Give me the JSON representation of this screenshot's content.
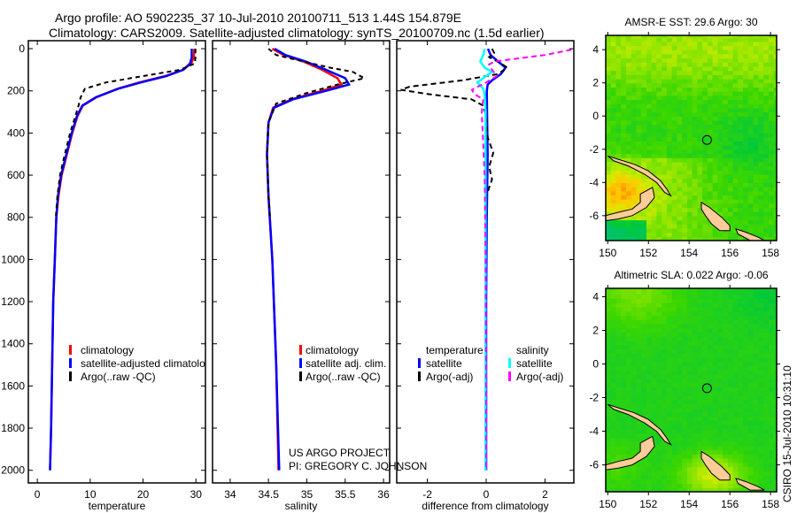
{
  "header": {
    "title_line1": "Argo profile: AO 5902235_37 10-Jul-2010 20100711_513 1.44S 154.879E",
    "title_line2": "Climatology: CARS2009. Satellite-adjusted climatology: synTS_20100709.nc (1.5d earlier)"
  },
  "credit": {
    "line1": "US ARGO PROJECT",
    "line2": "PI: GREGORY C. JOHNSON",
    "timestamp": "CSIRO 15-Jul-2010 10:31:10"
  },
  "colors": {
    "climatology": "#ff0000",
    "satellite": "#0000ff",
    "argo": "#000000",
    "sal_satellite": "#00ffff",
    "sal_argo": "#ff00ff",
    "land": "#ffcc99"
  },
  "chart_data": [
    {
      "type": "line",
      "title": "",
      "xlabel": "temperature",
      "ylabel": "",
      "xlim": [
        -1.7,
        31.8
      ],
      "ylim": [
        2060,
        -38
      ],
      "xticks": [
        "0",
        "10",
        "20",
        "30"
      ],
      "xtick_values": [
        0,
        10,
        20,
        30
      ],
      "yticks": [
        "0",
        "200",
        "400",
        "600",
        "800",
        "1000",
        "1200",
        "1400",
        "1600",
        "1800",
        "2000"
      ],
      "ytick_values": [
        0,
        200,
        400,
        600,
        800,
        1000,
        1200,
        1400,
        1600,
        1800,
        2000
      ],
      "legend": [
        "climatology",
        "satellite-adjusted climatology",
        "Argo(..raw -QC)"
      ],
      "series": [
        {
          "name": "climatology",
          "color": "#ff0000",
          "dash": "",
          "depth": [
            0,
            40,
            70,
            100,
            130,
            160,
            190,
            230,
            270,
            320,
            400,
            500,
            600,
            700,
            800,
            1000,
            1200,
            1500,
            1800,
            2000
          ],
          "values": [
            29.7,
            29.6,
            29.1,
            27.6,
            24.2,
            19.3,
            15.2,
            11.2,
            8.6,
            7.6,
            6.6,
            5.6,
            4.6,
            4.0,
            3.6,
            3.3,
            3.0,
            2.8,
            2.6,
            2.4
          ]
        },
        {
          "name": "satellite-adjusted climatology",
          "color": "#0000ff",
          "dash": "",
          "depth": [
            0,
            40,
            70,
            100,
            130,
            160,
            190,
            230,
            270,
            320,
            400,
            500,
            600,
            700,
            800,
            1000,
            1200,
            1500,
            1800,
            2000
          ],
          "values": [
            29.2,
            29.2,
            28.9,
            27.6,
            24.4,
            19.6,
            15.3,
            11.1,
            8.5,
            7.5,
            6.5,
            5.5,
            4.5,
            3.9,
            3.6,
            3.3,
            3.0,
            2.8,
            2.6,
            2.4
          ]
        },
        {
          "name": "Argo(..raw -QC)",
          "color": "#000000",
          "dash": "5,4",
          "depth": [
            0,
            40,
            70,
            100,
            130,
            160,
            190,
            230,
            270,
            320,
            400,
            500,
            600,
            700,
            800
          ],
          "values": [
            29.9,
            29.9,
            29.8,
            27.0,
            20.0,
            13.0,
            9.0,
            8.2,
            7.8,
            7.2,
            6.2,
            5.2,
            4.3,
            3.8,
            3.5
          ]
        }
      ]
    },
    {
      "type": "line",
      "xlabel": "salinity",
      "xlim": [
        33.77,
        36.08
      ],
      "ylim": [
        2060,
        -38
      ],
      "xticks": [
        "34",
        "34.5",
        "35",
        "35.5",
        "36"
      ],
      "xtick_values": [
        34,
        34.5,
        35,
        35.5,
        36
      ],
      "legend": [
        "climatology",
        "satellite adj. clim.",
        "Argo(..raw -QC)"
      ],
      "series": [
        {
          "name": "climatology",
          "color": "#ff0000",
          "dash": "",
          "depth": [
            0,
            30,
            60,
            100,
            140,
            170,
            200,
            240,
            280,
            350,
            500,
            700,
            1000,
            1500,
            2000
          ],
          "values": [
            34.55,
            34.7,
            34.95,
            35.2,
            35.4,
            35.45,
            35.2,
            34.8,
            34.56,
            34.5,
            34.48,
            34.5,
            34.55,
            34.6,
            34.63
          ]
        },
        {
          "name": "satellite adj. clim.",
          "color": "#0000ff",
          "dash": "",
          "depth": [
            0,
            30,
            60,
            100,
            140,
            170,
            200,
            240,
            280,
            350,
            500,
            700,
            1000,
            1500,
            2000
          ],
          "values": [
            34.58,
            34.72,
            34.98,
            35.25,
            35.5,
            35.55,
            35.25,
            34.82,
            34.57,
            34.5,
            34.48,
            34.5,
            34.55,
            34.6,
            34.64
          ]
        },
        {
          "name": "Argo(..raw -QC)",
          "color": "#000000",
          "dash": "5,4",
          "depth": [
            0,
            30,
            60,
            90,
            110,
            140,
            170,
            210,
            260,
            350,
            500,
            700,
            800
          ],
          "values": [
            34.5,
            34.6,
            34.95,
            35.3,
            35.6,
            35.75,
            35.4,
            35.0,
            34.6,
            34.5,
            34.48,
            34.5,
            34.52
          ]
        }
      ]
    },
    {
      "type": "line",
      "xlabel": "difference from climatology",
      "xlim": [
        -3.04,
        2.98
      ],
      "ylim": [
        2060,
        -38
      ],
      "xticks": [
        "-2",
        "0",
        "2"
      ],
      "xtick_values": [
        -2,
        0,
        2
      ],
      "legend_headers": [
        "temperature",
        "salinity"
      ],
      "legend": [
        "satellite",
        "Argo(-adj)",
        "satellite",
        "Argo(-adj)"
      ],
      "series": [
        {
          "name": "temperature satellite",
          "color": "#0000ff",
          "dash": "",
          "depth": [
            0,
            30,
            60,
            90,
            120,
            150,
            170,
            200,
            300,
            500,
            800,
            1200,
            1600,
            2000
          ],
          "values": [
            0.06,
            0.15,
            0.4,
            0.66,
            0.5,
            0.2,
            0.05,
            0.02,
            0.03,
            0.05,
            0.02,
            0.0,
            0.0,
            0.0
          ]
        },
        {
          "name": "temperature Argo(-adj)",
          "color": "#000000",
          "dash": "6,4",
          "depth": [
            0,
            20,
            40,
            70,
            90,
            120,
            150,
            180,
            195,
            215,
            240,
            270,
            320,
            420,
            495,
            560,
            620,
            700,
            800
          ],
          "values": [
            0.2,
            0.27,
            0.1,
            0.5,
            0.72,
            0.4,
            -0.8,
            -2.6,
            -2.9,
            -2.0,
            -0.5,
            -0.1,
            0.0,
            0.05,
            0.24,
            0.1,
            0.2,
            0.0,
            0.0
          ]
        },
        {
          "name": "salinity satellite",
          "color": "#00ffff",
          "dash": "",
          "depth": [
            0,
            30,
            60,
            90,
            110,
            140,
            160,
            190,
            220,
            300,
            600,
            1000,
            1500,
            2000
          ],
          "values": [
            -0.05,
            -0.1,
            -0.2,
            -0.05,
            0.2,
            -0.1,
            -0.3,
            -0.1,
            -0.05,
            -0.02,
            -0.02,
            -0.02,
            -0.02,
            -0.02
          ]
        },
        {
          "name": "salinity Argo(-adj)",
          "color": "#ff00ff",
          "dash": "6,4",
          "depth": [
            5,
            30,
            60,
            75,
            100,
            130,
            160,
            195,
            215,
            240,
            300,
            600,
            1000,
            1600,
            2000
          ],
          "values": [
            2.9,
            2.0,
            0.3,
            0.1,
            0.2,
            0.36,
            0.0,
            -0.48,
            -0.4,
            -0.1,
            -0.15,
            -0.05,
            -0.02,
            0.0,
            0.0
          ]
        }
      ]
    },
    {
      "type": "heatmap",
      "title": "AMSR-E SST: 29.6 Argo: 30",
      "xlim": [
        149.9,
        158.3
      ],
      "ylim": [
        -7.5,
        4.86
      ],
      "xticks": [
        "150",
        "152",
        "154",
        "156",
        "158"
      ],
      "xtick_values": [
        150,
        152,
        154,
        156,
        158
      ],
      "yticks": [
        "4",
        "2",
        "0",
        "-2",
        "-4",
        "-6"
      ],
      "ytick_values": [
        4,
        2,
        0,
        -2,
        -4,
        -6
      ],
      "argo_position": {
        "lon": 154.879,
        "lat": -1.44
      }
    },
    {
      "type": "heatmap",
      "title": "Altimetric SLA: 0.022 Argo: -0.06",
      "xlim": [
        149.9,
        158.3
      ],
      "ylim": [
        -7.6,
        4.5
      ],
      "xticks": [
        "150",
        "152",
        "154",
        "156",
        "158"
      ],
      "xtick_values": [
        150,
        152,
        154,
        156,
        158
      ],
      "yticks": [
        "4",
        "2",
        "0",
        "-2",
        "-4",
        "-6"
      ],
      "ytick_values": [
        4,
        2,
        0,
        -2,
        -4,
        -6
      ],
      "argo_position": {
        "lon": 154.879,
        "lat": -1.44
      }
    }
  ]
}
